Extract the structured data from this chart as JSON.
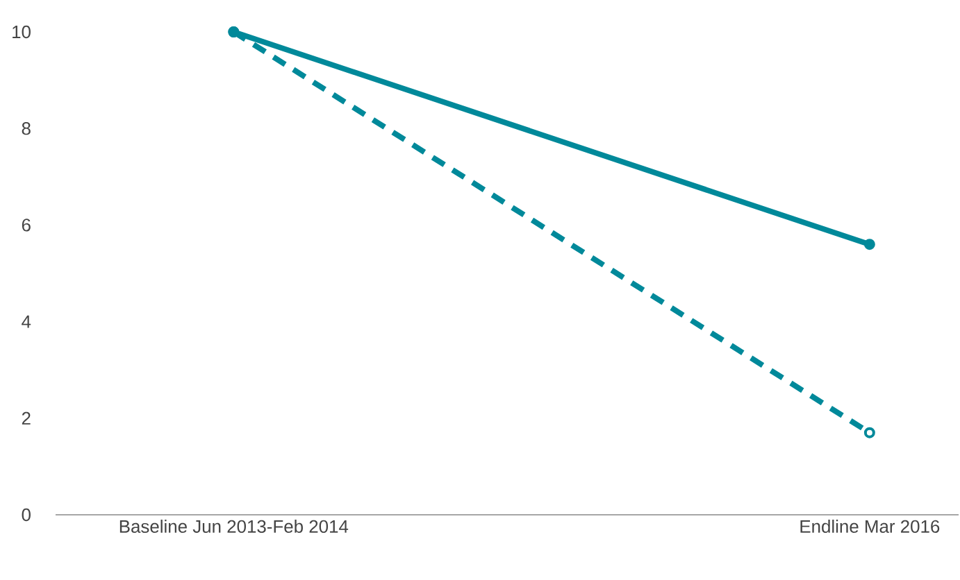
{
  "chart_data": {
    "type": "line",
    "categories": [
      "Baseline Jun 2013-Feb 2014",
      "Endline Mar 2016"
    ],
    "series": [
      {
        "color": "#00899a",
        "values": [
          10,
          5.6
        ],
        "line_style": "solid"
      },
      {
        "color": "#00899a",
        "values": [
          10,
          1.7
        ],
        "line_style": "dashed"
      }
    ],
    "ylim": [
      0,
      10
    ],
    "yticks": [
      0,
      2,
      4,
      6,
      8,
      10
    ],
    "grid": false,
    "marker": "circle"
  }
}
